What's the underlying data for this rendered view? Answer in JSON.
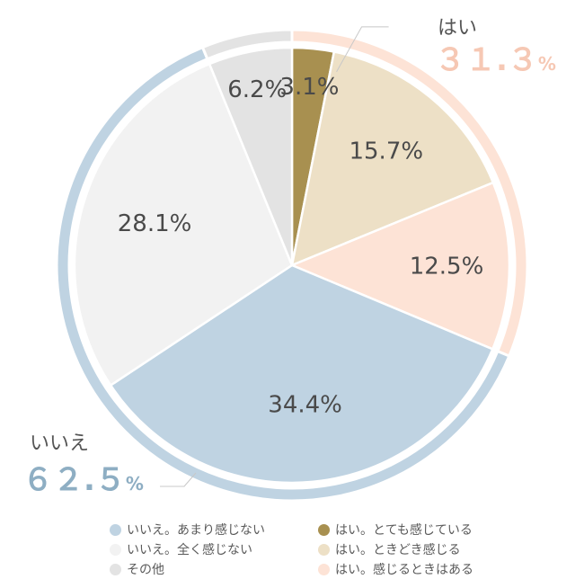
{
  "chart_data": {
    "type": "pie",
    "slices": [
      {
        "label": "はい。とても感じている",
        "value": 3.1,
        "value_label": "3.1%",
        "color": "#a89050"
      },
      {
        "label": "はい。ときどき感じる",
        "value": 15.7,
        "value_label": "15.7%",
        "color": "#ede0c6"
      },
      {
        "label": "はい。感じるときはある",
        "value": 12.5,
        "value_label": "12.5%",
        "color": "#fde3d6"
      },
      {
        "label": "いいえ。あまり感じない",
        "value": 34.4,
        "value_label": "34.4%",
        "color": "#bfd3e2"
      },
      {
        "label": "いいえ。全く感じない",
        "value": 28.1,
        "value_label": "28.1%",
        "color": "#f2f2f2"
      },
      {
        "label": "その他",
        "value": 6.2,
        "value_label": "6.2%",
        "color": "#e3e3e3"
      }
    ],
    "groups": [
      {
        "label": "はい",
        "value_label": "３１.３",
        "unit": "%",
        "value": 31.3,
        "color": "#fde3d6",
        "text_color": "#f6c8b4"
      },
      {
        "label": "いいえ",
        "value_label": "６２.５",
        "unit": "%",
        "value": 62.5,
        "color": "#bfd3e2",
        "text_color": "#8eaec3"
      },
      {
        "value": 6.2,
        "color": "#e3e3e3"
      }
    ],
    "legend": {
      "position": "bottom",
      "columns": [
        [
          "いいえ。あまり感じない",
          "いいえ。全く感じない",
          "その他"
        ],
        [
          "はい。とても感じている",
          "はい。ときどき感じる",
          "はい。感じるときはある"
        ]
      ]
    }
  }
}
